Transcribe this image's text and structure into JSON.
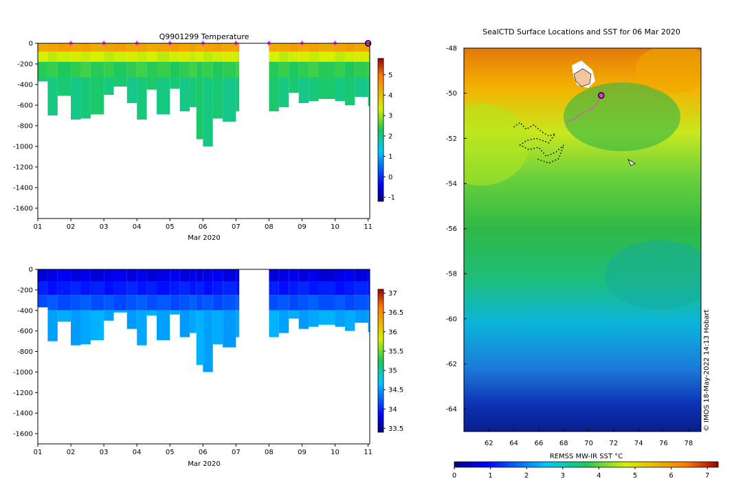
{
  "chart_data": [
    {
      "type": "heatmap",
      "title": "Q9901299  Temperature",
      "xlabel": "Mar 2020",
      "ylabel": "",
      "xticks": [
        "01",
        "02",
        "03",
        "04",
        "05",
        "06",
        "07",
        "08",
        "09",
        "10",
        "11"
      ],
      "xlim": [
        1,
        11.05
      ],
      "ylim": [
        -1700,
        0
      ],
      "yticks": [
        "0",
        "-200",
        "-400",
        "-600",
        "-800",
        "-1000",
        "-1200",
        "-1400",
        "-1600"
      ],
      "ytick_values": [
        0,
        -200,
        -400,
        -600,
        -800,
        -1000,
        -1200,
        -1400,
        -1600
      ],
      "colorbar": {
        "ticks": [
          "5",
          "4",
          "3",
          "2",
          "1",
          "0",
          "-1"
        ],
        "tick_values": [
          5,
          4,
          3,
          2,
          1,
          0,
          -1
        ],
        "range": [
          -1.2,
          5.8
        ]
      },
      "surface_markers_days": [
        2,
        3,
        4,
        5,
        6,
        7,
        8,
        9,
        10
      ],
      "last_position_day": 11,
      "data_gap_days": [
        7.1,
        7.7
      ],
      "profile_max_depth_m": [
        {
          "day": 1.0,
          "depth": 370
        },
        {
          "day": 1.3,
          "depth": 700
        },
        {
          "day": 1.6,
          "depth": 510
        },
        {
          "day": 2.0,
          "depth": 740
        },
        {
          "day": 2.3,
          "depth": 730
        },
        {
          "day": 2.6,
          "depth": 690
        },
        {
          "day": 3.0,
          "depth": 500
        },
        {
          "day": 3.3,
          "depth": 420
        },
        {
          "day": 3.7,
          "depth": 580
        },
        {
          "day": 4.0,
          "depth": 740
        },
        {
          "day": 4.3,
          "depth": 450
        },
        {
          "day": 4.6,
          "depth": 690
        },
        {
          "day": 5.0,
          "depth": 440
        },
        {
          "day": 5.3,
          "depth": 660
        },
        {
          "day": 5.6,
          "depth": 620
        },
        {
          "day": 5.8,
          "depth": 930
        },
        {
          "day": 6.0,
          "depth": 1000
        },
        {
          "day": 6.3,
          "depth": 730
        },
        {
          "day": 6.6,
          "depth": 760
        },
        {
          "day": 7.0,
          "depth": 660
        },
        {
          "day": 8.0,
          "depth": 660
        },
        {
          "day": 8.3,
          "depth": 620
        },
        {
          "day": 8.6,
          "depth": 480
        },
        {
          "day": 8.9,
          "depth": 580
        },
        {
          "day": 9.2,
          "depth": 560
        },
        {
          "day": 9.5,
          "depth": 540
        },
        {
          "day": 10.0,
          "depth": 560
        },
        {
          "day": 10.3,
          "depth": 600
        },
        {
          "day": 10.6,
          "depth": 520
        },
        {
          "day": 11.0,
          "depth": 610
        }
      ],
      "temperature_layers": [
        {
          "from_m": 0,
          "to_m": 80,
          "value": 4.4
        },
        {
          "from_m": 80,
          "to_m": 180,
          "value": 3.3
        },
        {
          "from_m": 180,
          "to_m": 330,
          "value": 2.4
        },
        {
          "from_m": 330,
          "to_m": 1000,
          "value": 2.1
        }
      ]
    },
    {
      "type": "heatmap",
      "title": "",
      "xlabel": "Mar 2020",
      "ylabel": "",
      "xticks": [
        "01",
        "02",
        "03",
        "04",
        "05",
        "06",
        "07",
        "08",
        "09",
        "10",
        "11"
      ],
      "xlim": [
        1,
        11.05
      ],
      "ylim": [
        -1700,
        0
      ],
      "yticks": [
        "0",
        "-200",
        "-400",
        "-600",
        "-800",
        "-1000",
        "-1200",
        "-1400",
        "-1600"
      ],
      "ytick_values": [
        0,
        -200,
        -400,
        -600,
        -800,
        -1000,
        -1200,
        -1400,
        -1600
      ],
      "colorbar": {
        "ticks": [
          "37",
          "36.5",
          "36",
          "35.5",
          "35",
          "34.5",
          "34",
          "33.5"
        ],
        "tick_values": [
          37,
          36.5,
          36,
          35.5,
          35,
          34.5,
          34,
          33.5
        ],
        "range": [
          33.4,
          37.1
        ]
      },
      "salinity_layers": [
        {
          "from_m": 0,
          "to_m": 120,
          "value": 33.75
        },
        {
          "from_m": 120,
          "to_m": 250,
          "value": 33.95
        },
        {
          "from_m": 250,
          "to_m": 400,
          "value": 34.2
        },
        {
          "from_m": 400,
          "to_m": 1000,
          "value": 34.55
        }
      ]
    },
    {
      "type": "heatmap",
      "title": "SealCTD Surface Locations and SST for 06 Mar 2020",
      "xlabel": "",
      "ylabel": "",
      "xlim": [
        60,
        79
      ],
      "ylim": [
        -65,
        -48
      ],
      "xticks": [
        "62",
        "64",
        "66",
        "68",
        "70",
        "72",
        "74",
        "76",
        "78"
      ],
      "xtick_values": [
        62,
        64,
        66,
        68,
        70,
        72,
        74,
        76,
        78
      ],
      "yticks": [
        "-48",
        "-50",
        "-52",
        "-54",
        "-56",
        "-58",
        "-60",
        "-62",
        "-64"
      ],
      "ytick_values": [
        -48,
        -50,
        -52,
        -54,
        -56,
        -58,
        -60,
        -62,
        -64
      ],
      "colorbar": {
        "label": "REMSS MW-IR SST °C",
        "ticks": [
          "0",
          "1",
          "2",
          "3",
          "4",
          "5",
          "6",
          "7"
        ],
        "tick_values": [
          0,
          1,
          2,
          3,
          4,
          5,
          6,
          7
        ],
        "range": [
          0,
          7.3
        ]
      },
      "credit": "© IMOS 18-May-2022 14:13 Hobart",
      "seal_track_lonlat": [
        [
          71.0,
          -50.1
        ],
        [
          70.8,
          -50.3
        ],
        [
          70.6,
          -50.5
        ],
        [
          70.2,
          -50.7
        ],
        [
          69.8,
          -50.8
        ],
        [
          69.4,
          -50.9
        ],
        [
          69.0,
          -51.1
        ],
        [
          68.6,
          -51.2
        ],
        [
          68.2,
          -51.3
        ]
      ],
      "older_track_lonlat": [
        [
          64.0,
          -51.5
        ],
        [
          64.5,
          -51.3
        ],
        [
          65.0,
          -51.6
        ],
        [
          65.6,
          -51.4
        ],
        [
          66.2,
          -51.7
        ],
        [
          66.8,
          -51.9
        ],
        [
          67.3,
          -51.8
        ],
        [
          66.8,
          -52.2
        ],
        [
          65.8,
          -52.0
        ],
        [
          65.0,
          -52.1
        ],
        [
          64.5,
          -52.3
        ],
        [
          65.2,
          -52.5
        ],
        [
          66.0,
          -52.4
        ],
        [
          66.6,
          -52.8
        ],
        [
          67.4,
          -52.6
        ],
        [
          68.0,
          -52.3
        ],
        [
          67.6,
          -52.9
        ],
        [
          66.8,
          -53.1
        ],
        [
          65.8,
          -52.9
        ]
      ],
      "last_position_lonlat": [
        71.0,
        -50.1
      ]
    }
  ]
}
